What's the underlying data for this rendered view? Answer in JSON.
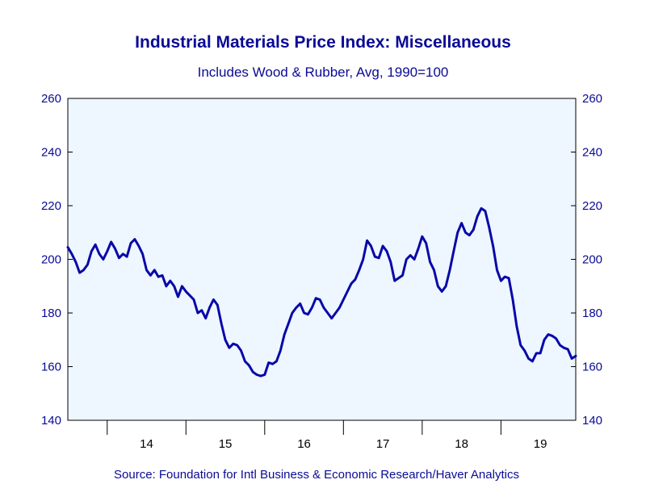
{
  "colors": {
    "text": "#0a0a96",
    "line": "#0808a8",
    "plot_bg": "#eef6ff",
    "axis": "#000000"
  },
  "chart_data": {
    "type": "line",
    "title": "Industrial Materials Price Index: Miscellaneous",
    "subtitle": "Includes Wood & Rubber, Avg, 1990=100",
    "source": "Source:  Foundation for Intl Business & Economic Research/Haver Analytics",
    "ylim": [
      140,
      260
    ],
    "yticks": [
      "260",
      "240",
      "220",
      "200",
      "180",
      "160",
      "140"
    ],
    "xlim": [
      2013.5,
      2019.95
    ],
    "xticks": [
      {
        "label": "14",
        "x": 2014.0
      },
      {
        "label": "15",
        "x": 2015.0
      },
      {
        "label": "16",
        "x": 2016.0
      },
      {
        "label": "17",
        "x": 2017.0
      },
      {
        "label": "18",
        "x": 2018.0
      },
      {
        "label": "19",
        "x": 2019.0
      }
    ],
    "grid": false,
    "series": [
      {
        "values": [
          [
            2013.5,
            204.5
          ],
          [
            2013.55,
            202.0
          ],
          [
            2013.6,
            199.0
          ],
          [
            2013.65,
            195.0
          ],
          [
            2013.7,
            196.0
          ],
          [
            2013.75,
            198.0
          ],
          [
            2013.8,
            203.0
          ],
          [
            2013.85,
            205.5
          ],
          [
            2013.9,
            202.0
          ],
          [
            2013.95,
            200.0
          ],
          [
            2014.0,
            203.0
          ],
          [
            2014.05,
            206.5
          ],
          [
            2014.1,
            204.0
          ],
          [
            2014.15,
            200.5
          ],
          [
            2014.2,
            202.0
          ],
          [
            2014.25,
            201.0
          ],
          [
            2014.3,
            206.0
          ],
          [
            2014.35,
            207.5
          ],
          [
            2014.4,
            205.0
          ],
          [
            2014.45,
            202.0
          ],
          [
            2014.5,
            196.0
          ],
          [
            2014.55,
            194.0
          ],
          [
            2014.6,
            196.0
          ],
          [
            2014.65,
            193.5
          ],
          [
            2014.7,
            194.0
          ],
          [
            2014.75,
            190.0
          ],
          [
            2014.8,
            192.0
          ],
          [
            2014.85,
            190.0
          ],
          [
            2014.9,
            186.0
          ],
          [
            2014.95,
            190.0
          ],
          [
            2015.0,
            188.0
          ],
          [
            2015.05,
            186.5
          ],
          [
            2015.1,
            185.0
          ],
          [
            2015.15,
            180.0
          ],
          [
            2015.2,
            181.0
          ],
          [
            2015.25,
            178.0
          ],
          [
            2015.3,
            182.0
          ],
          [
            2015.35,
            185.0
          ],
          [
            2015.4,
            183.0
          ],
          [
            2015.45,
            176.0
          ],
          [
            2015.5,
            170.0
          ],
          [
            2015.55,
            167.0
          ],
          [
            2015.6,
            168.5
          ],
          [
            2015.65,
            168.0
          ],
          [
            2015.7,
            166.0
          ],
          [
            2015.75,
            162.0
          ],
          [
            2015.8,
            160.5
          ],
          [
            2015.85,
            158.0
          ],
          [
            2015.9,
            157.0
          ],
          [
            2015.95,
            156.5
          ],
          [
            2016.0,
            157.0
          ],
          [
            2016.05,
            161.5
          ],
          [
            2016.1,
            161.0
          ],
          [
            2016.15,
            162.0
          ],
          [
            2016.2,
            166.0
          ],
          [
            2016.25,
            172.0
          ],
          [
            2016.3,
            176.0
          ],
          [
            2016.35,
            180.0
          ],
          [
            2016.4,
            182.0
          ],
          [
            2016.45,
            183.5
          ],
          [
            2016.5,
            180.0
          ],
          [
            2016.55,
            179.5
          ],
          [
            2016.6,
            182.0
          ],
          [
            2016.65,
            185.5
          ],
          [
            2016.7,
            185.0
          ],
          [
            2016.75,
            182.0
          ],
          [
            2016.8,
            180.0
          ],
          [
            2016.85,
            178.0
          ],
          [
            2016.9,
            180.0
          ],
          [
            2016.95,
            182.0
          ],
          [
            2017.0,
            185.0
          ],
          [
            2017.05,
            188.0
          ],
          [
            2017.1,
            191.0
          ],
          [
            2017.15,
            192.5
          ],
          [
            2017.2,
            196.0
          ],
          [
            2017.25,
            200.0
          ],
          [
            2017.3,
            207.0
          ],
          [
            2017.35,
            205.0
          ],
          [
            2017.4,
            201.0
          ],
          [
            2017.45,
            200.5
          ],
          [
            2017.5,
            205.0
          ],
          [
            2017.55,
            203.0
          ],
          [
            2017.6,
            199.0
          ],
          [
            2017.65,
            192.0
          ],
          [
            2017.7,
            193.0
          ],
          [
            2017.75,
            194.0
          ],
          [
            2017.8,
            200.0
          ],
          [
            2017.85,
            201.5
          ],
          [
            2017.9,
            200.0
          ],
          [
            2017.95,
            204.0
          ],
          [
            2018.0,
            208.5
          ],
          [
            2018.05,
            206.0
          ],
          [
            2018.1,
            199.0
          ],
          [
            2018.15,
            196.0
          ],
          [
            2018.2,
            190.0
          ],
          [
            2018.25,
            188.0
          ],
          [
            2018.3,
            190.0
          ],
          [
            2018.35,
            196.0
          ],
          [
            2018.4,
            203.0
          ],
          [
            2018.45,
            210.0
          ],
          [
            2018.5,
            213.5
          ],
          [
            2018.55,
            210.0
          ],
          [
            2018.6,
            209.0
          ],
          [
            2018.65,
            211.0
          ],
          [
            2018.7,
            216.0
          ],
          [
            2018.75,
            219.0
          ],
          [
            2018.8,
            218.0
          ],
          [
            2018.85,
            212.0
          ],
          [
            2018.9,
            205.0
          ],
          [
            2018.95,
            196.0
          ],
          [
            2019.0,
            192.0
          ],
          [
            2019.05,
            193.5
          ],
          [
            2019.1,
            193.0
          ],
          [
            2019.15,
            185.0
          ],
          [
            2019.2,
            175.0
          ],
          [
            2019.25,
            168.0
          ],
          [
            2019.3,
            166.0
          ],
          [
            2019.35,
            163.0
          ],
          [
            2019.4,
            162.0
          ],
          [
            2019.45,
            165.0
          ],
          [
            2019.5,
            165.0
          ],
          [
            2019.55,
            170.0
          ],
          [
            2019.6,
            172.0
          ],
          [
            2019.65,
            171.5
          ],
          [
            2019.7,
            170.5
          ],
          [
            2019.75,
            168.0
          ],
          [
            2019.8,
            167.0
          ],
          [
            2019.85,
            166.5
          ],
          [
            2019.9,
            163.0
          ],
          [
            2019.95,
            164.0
          ]
        ]
      }
    ]
  }
}
